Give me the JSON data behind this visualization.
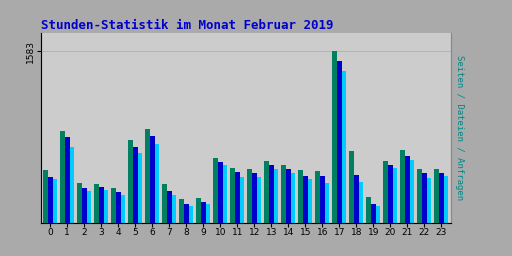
{
  "title": "Stunden-Statistik im Monat Februar 2019",
  "ylabel_right": "Seiten / Dateien / Anfragen",
  "hours": [
    0,
    1,
    2,
    3,
    4,
    5,
    6,
    7,
    8,
    9,
    10,
    11,
    12,
    13,
    14,
    15,
    16,
    17,
    18,
    19,
    20,
    21,
    22,
    23
  ],
  "seiten": [
    490,
    850,
    370,
    355,
    325,
    760,
    870,
    355,
    215,
    230,
    600,
    510,
    500,
    570,
    535,
    485,
    480,
    1583,
    660,
    235,
    570,
    670,
    500,
    500
  ],
  "dateien": [
    420,
    790,
    325,
    330,
    280,
    700,
    800,
    295,
    170,
    195,
    565,
    465,
    455,
    535,
    495,
    435,
    435,
    1490,
    440,
    175,
    530,
    620,
    455,
    460
  ],
  "anfragen": [
    400,
    700,
    295,
    300,
    255,
    640,
    730,
    260,
    150,
    170,
    535,
    425,
    425,
    500,
    460,
    400,
    370,
    1400,
    380,
    155,
    510,
    575,
    415,
    430
  ],
  "color_seiten": "#008060",
  "color_dateien": "#0000cc",
  "color_anfragen": "#00ccff",
  "bg_color": "#aaaaaa",
  "plot_bg_color": "#cccccc",
  "title_color": "#0000cc",
  "ylim": [
    0,
    1750
  ],
  "ytick_value": 1583,
  "ytick_label": "1583",
  "bar_width": 0.27
}
